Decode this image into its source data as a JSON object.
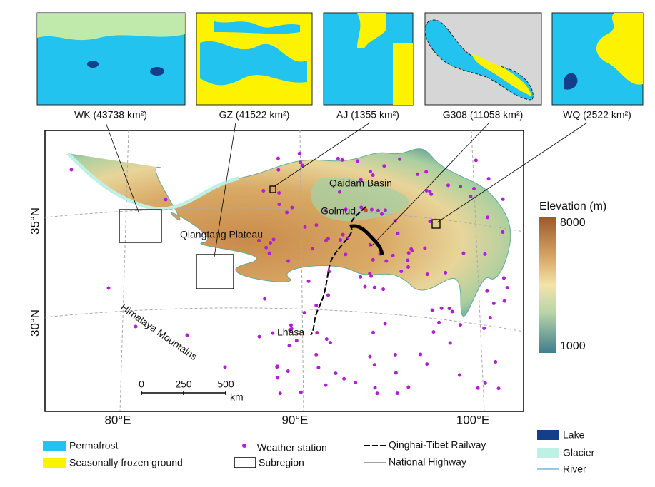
{
  "insets": [
    {
      "label": "WK (43738 km²)"
    },
    {
      "label": "GZ (41522 km²)"
    },
    {
      "label": "AJ (1355 km²)"
    },
    {
      "label": "G308 (11058 km²)"
    },
    {
      "label": "WQ (2522 km²)"
    }
  ],
  "map": {
    "place_labels": {
      "qaidam": "Qaidam Basin",
      "golmud": "Golmud",
      "qiangtang": "Qiangtang Plateau",
      "himalaya": "Himalaya Mountains",
      "lhasa": "Lhasa"
    },
    "lat_labels": [
      "35°N",
      "30°N"
    ],
    "lon_labels": [
      "80°E",
      "90°E",
      "100°E"
    ],
    "scale_bar": {
      "ticks": [
        "0",
        "250",
        "500"
      ],
      "unit": "km"
    }
  },
  "elevation_legend": {
    "title": "Elevation (m)",
    "max": "8000",
    "min": "1000"
  },
  "legend": {
    "permafrost": "Permafrost",
    "seasonal": "Seasonally frozen ground",
    "station": "Weather station",
    "subregion": "Subregion",
    "railway": "Qinghai-Tibet Railway",
    "highway": "National Highway",
    "lake": "Lake",
    "glacier": "Glacier",
    "river": "River"
  }
}
